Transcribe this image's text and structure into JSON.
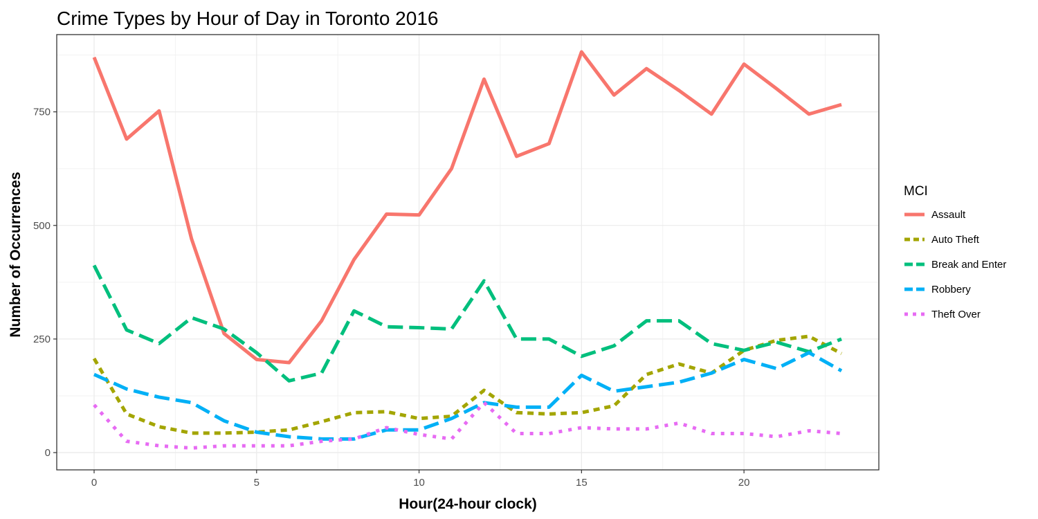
{
  "chart_data": {
    "type": "line",
    "title": "Crime Types by Hour of Day in Toronto 2016",
    "xlabel": "Hour(24-hour clock)",
    "ylabel": "Number of Occurrences",
    "xlim": [
      -1.15,
      24.15
    ],
    "ylim": [
      -38,
      920
    ],
    "x_ticks": [
      0,
      5,
      10,
      15,
      20
    ],
    "y_ticks": [
      0,
      250,
      500,
      750
    ],
    "grid": true,
    "legend": {
      "title": "MCI",
      "placement": "right"
    },
    "x": [
      0,
      1,
      2,
      3,
      4,
      5,
      6,
      7,
      8,
      9,
      10,
      11,
      12,
      13,
      14,
      15,
      16,
      17,
      18,
      19,
      20,
      21,
      22,
      23
    ],
    "series": [
      {
        "name": "Assault",
        "color": "#F8766D",
        "dash": "solid",
        "values": [
          870,
          690,
          752,
          470,
          262,
          205,
          198,
          290,
          425,
          525,
          523,
          625,
          822,
          652,
          680,
          882,
          787,
          845,
          797,
          745,
          855,
          801,
          745,
          766
        ]
      },
      {
        "name": "Auto Theft",
        "color": "#A3A500",
        "dash": "dashed-short",
        "values": [
          207,
          85,
          57,
          43,
          43,
          45,
          50,
          68,
          88,
          90,
          75,
          80,
          137,
          88,
          85,
          88,
          103,
          172,
          195,
          175,
          225,
          247,
          256,
          218
        ]
      },
      {
        "name": "Break and Enter",
        "color": "#00BF7D",
        "dash": "dashed-long",
        "values": [
          412,
          270,
          240,
          297,
          272,
          220,
          158,
          175,
          312,
          277,
          275,
          272,
          378,
          250,
          250,
          212,
          235,
          290,
          290,
          240,
          225,
          243,
          222,
          250
        ]
      },
      {
        "name": "Robbery",
        "color": "#00B0F6",
        "dash": "dashed-long",
        "values": [
          172,
          140,
          122,
          110,
          70,
          45,
          35,
          30,
          30,
          50,
          50,
          75,
          110,
          100,
          100,
          170,
          135,
          145,
          155,
          175,
          205,
          185,
          220,
          180
        ]
      },
      {
        "name": "Theft Over",
        "color": "#E76BF3",
        "dash": "dotted",
        "values": [
          105,
          25,
          15,
          10,
          15,
          15,
          15,
          25,
          30,
          55,
          40,
          30,
          110,
          42,
          42,
          55,
          52,
          52,
          65,
          42,
          42,
          35,
          48,
          42
        ]
      }
    ]
  }
}
